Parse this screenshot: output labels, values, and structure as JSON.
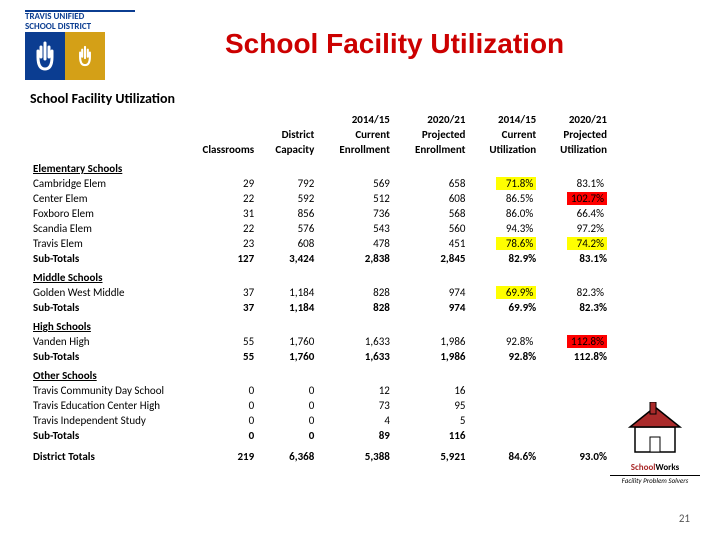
{
  "logo": {
    "line1": "TRAVIS UNIFIED",
    "line2": "SCHOOL DISTRICT",
    "band_color": "#0b3d91",
    "left_bg": "#0b3d91",
    "right_bg": "#d4a017",
    "hand_color": "#ffffff"
  },
  "title": {
    "text": "School Facility Utilization",
    "color": "#cc0000"
  },
  "table_title": "School Facility Utilization",
  "headers": {
    "col2_line2": "Classrooms",
    "col3_line1": "District",
    "col3_line2": "Capacity",
    "col4_line1": "2014/15",
    "col4_line2": "Current",
    "col4_line3": "Enrollment",
    "col5_line1": "2020/21",
    "col5_line2": "Projected",
    "col5_line3": "Enrollment",
    "col6_line1": "2014/15",
    "col6_line2": "Current",
    "col6_line3": "Utilization",
    "col7_line1": "2020/21",
    "col7_line2": "Projected",
    "col7_line3": "Utilization"
  },
  "highlight_colors": {
    "yellow": "#ffff00",
    "red": "#ff0000"
  },
  "sections": [
    {
      "title": "Elementary Schools",
      "rows": [
        {
          "label": "Cambridge Elem",
          "classrooms": "29",
          "capacity": "792",
          "cur_enr": "569",
          "proj_enr": "658",
          "cur_util": "71.8%",
          "proj_util": "83.1%",
          "cur_hl": "yellow"
        },
        {
          "label": "Center Elem",
          "classrooms": "22",
          "capacity": "592",
          "cur_enr": "512",
          "proj_enr": "608",
          "cur_util": "86.5%",
          "proj_util": "102.7%",
          "proj_hl": "red"
        },
        {
          "label": "Foxboro Elem",
          "classrooms": "31",
          "capacity": "856",
          "cur_enr": "736",
          "proj_enr": "568",
          "cur_util": "86.0%",
          "proj_util": "66.4%"
        },
        {
          "label": "Scandia Elem",
          "classrooms": "22",
          "capacity": "576",
          "cur_enr": "543",
          "proj_enr": "560",
          "cur_util": "94.3%",
          "proj_util": "97.2%"
        },
        {
          "label": "Travis Elem",
          "classrooms": "23",
          "capacity": "608",
          "cur_enr": "478",
          "proj_enr": "451",
          "cur_util": "78.6%",
          "proj_util": "74.2%",
          "cur_hl": "yellow",
          "proj_hl": "yellow"
        }
      ],
      "subtotal": {
        "label": "Sub-Totals",
        "classrooms": "127",
        "capacity": "3,424",
        "cur_enr": "2,838",
        "proj_enr": "2,845",
        "cur_util": "82.9%",
        "proj_util": "83.1%"
      }
    },
    {
      "title": "Middle Schools",
      "rows": [
        {
          "label": "Golden West Middle",
          "classrooms": "37",
          "capacity": "1,184",
          "cur_enr": "828",
          "proj_enr": "974",
          "cur_util": "69.9%",
          "proj_util": "82.3%",
          "cur_hl": "yellow"
        }
      ],
      "subtotal": {
        "label": "Sub-Totals",
        "classrooms": "37",
        "capacity": "1,184",
        "cur_enr": "828",
        "proj_enr": "974",
        "cur_util": "69.9%",
        "proj_util": "82.3%"
      }
    },
    {
      "title": "High Schools",
      "rows": [
        {
          "label": "Vanden High",
          "classrooms": "55",
          "capacity": "1,760",
          "cur_enr": "1,633",
          "proj_enr": "1,986",
          "cur_util": "92.8%",
          "proj_util": "112.8%",
          "proj_hl": "red"
        }
      ],
      "subtotal": {
        "label": "Sub-Totals",
        "classrooms": "55",
        "capacity": "1,760",
        "cur_enr": "1,633",
        "proj_enr": "1,986",
        "cur_util": "92.8%",
        "proj_util": "112.8%"
      }
    },
    {
      "title": "Other Schools",
      "rows": [
        {
          "label": "Travis Community Day School",
          "classrooms": "0",
          "capacity": "0",
          "cur_enr": "12",
          "proj_enr": "16",
          "cur_util": "",
          "proj_util": ""
        },
        {
          "label": "Travis Education Center High",
          "classrooms": "0",
          "capacity": "0",
          "cur_enr": "73",
          "proj_enr": "95",
          "cur_util": "",
          "proj_util": ""
        },
        {
          "label": "Travis Independent Study",
          "classrooms": "0",
          "capacity": "0",
          "cur_enr": "4",
          "proj_enr": "5",
          "cur_util": "",
          "proj_util": ""
        }
      ],
      "subtotal": {
        "label": "Sub-Totals",
        "classrooms": "0",
        "capacity": "0",
        "cur_enr": "89",
        "proj_enr": "116",
        "cur_util": "",
        "proj_util": ""
      }
    }
  ],
  "district_total": {
    "label": "District Totals",
    "classrooms": "219",
    "capacity": "6,368",
    "cur_enr": "5,388",
    "proj_enr": "5,921",
    "cur_util": "84.6%",
    "proj_util": "93.0%"
  },
  "schoolworks": {
    "brand_school": "School",
    "brand_works": "Works",
    "tagline": "Facility Problem Solvers",
    "roof_color": "#aa2b2b",
    "wall_color": "#ffffff",
    "outline_color": "#000000"
  },
  "page_number": "21"
}
